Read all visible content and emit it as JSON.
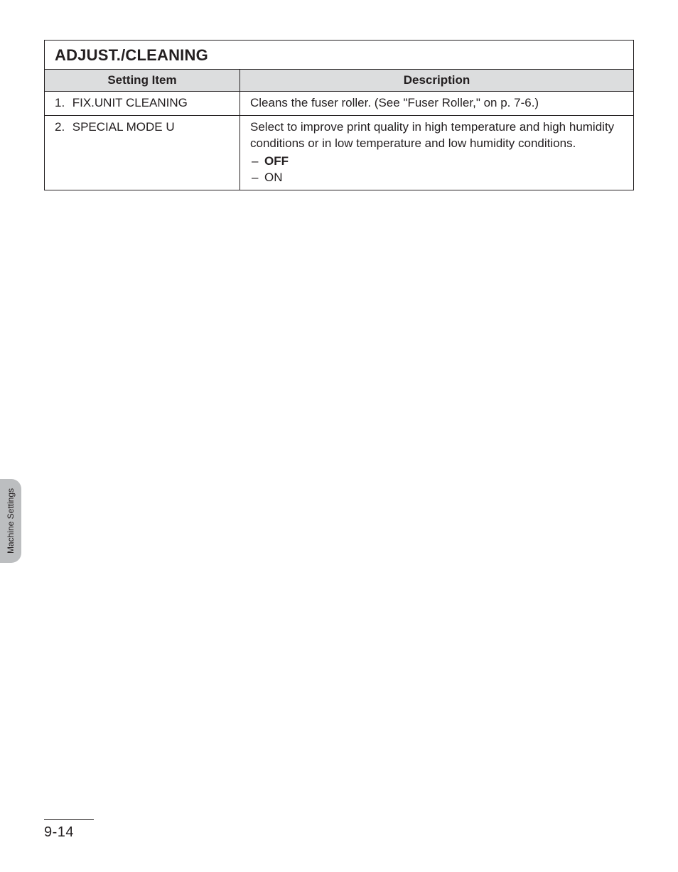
{
  "table": {
    "section_title": "ADJUST./CLEANING",
    "header_setting": "Setting Item",
    "header_description": "Description",
    "rows": [
      {
        "num": "1.",
        "name": "FIX.UNIT CLEANING",
        "desc": "Cleans the fuser roller. (See \"Fuser Roller,\" on p. 7-6.)"
      },
      {
        "num": "2.",
        "name": "SPECIAL MODE U",
        "desc": "Select to improve print quality in high temperature and high humidity conditions or in low temperature and low humidity conditions.",
        "options": [
          {
            "label": "OFF",
            "bold": true
          },
          {
            "label": "ON",
            "bold": false
          }
        ]
      }
    ]
  },
  "side_tab": {
    "label": "Machine Settings",
    "bg": "#bcbec0"
  },
  "footer": {
    "page_num": "9-14"
  }
}
